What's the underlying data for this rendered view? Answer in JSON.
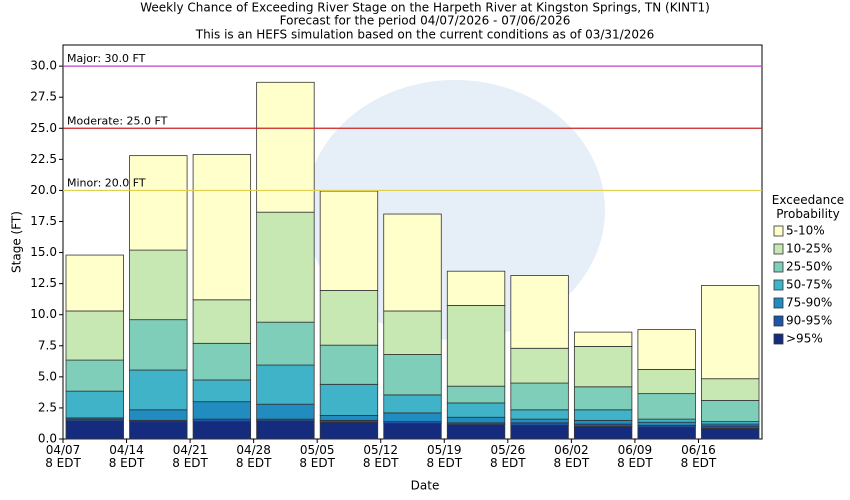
{
  "chart_data": {
    "type": "stacked_bar",
    "title": "Weekly Chance of Exceeding River Stage on the Harpeth River at Kingston Springs, TN (KINT1)",
    "subtitle": "Forecast for the period 04/07/2026 - 07/06/2026",
    "note": "This is an HEFS simulation based on the current conditions as of 03/31/2026",
    "x_label": "Date",
    "y_label": "Stage (FT)",
    "legend_title": "Exceedance Probability",
    "categories": [
      "04/07 8 EDT",
      "04/14 8 EDT",
      "04/21 8 EDT",
      "04/28 8 EDT",
      "05/05 8 EDT",
      "05/12 8 EDT",
      "05/19 8 EDT",
      "05/26 8 EDT",
      "06/02 8 EDT",
      "06/09 8 EDT",
      "06/16 8 EDT"
    ],
    "series": [
      {
        "name": ">95%",
        "color": "#142b7e",
        "values": [
          1.45,
          1.4,
          1.4,
          1.45,
          1.35,
          1.25,
          1.15,
          1.1,
          1.0,
          0.95,
          0.85
        ]
      },
      {
        "name": "90-95%",
        "color": "#1f55a6",
        "values": [
          0.15,
          0.1,
          0.2,
          0.15,
          0.15,
          0.15,
          0.15,
          0.2,
          0.2,
          0.15,
          0.2
        ]
      },
      {
        "name": "75-90%",
        "color": "#208cc0",
        "values": [
          0.1,
          0.85,
          1.4,
          1.2,
          0.4,
          0.7,
          0.45,
          0.3,
          0.3,
          0.25,
          0.15
        ]
      },
      {
        "name": "50-75%",
        "color": "#41b3c8",
        "values": [
          2.15,
          3.2,
          1.75,
          3.15,
          2.5,
          1.45,
          1.15,
          0.75,
          0.85,
          0.25,
          0.2
        ]
      },
      {
        "name": "25-50%",
        "color": "#7fceba",
        "values": [
          2.5,
          4.05,
          2.95,
          3.45,
          3.15,
          3.25,
          1.35,
          2.15,
          1.85,
          2.05,
          1.7
        ]
      },
      {
        "name": "10-25%",
        "color": "#c7e8b3",
        "values": [
          3.95,
          5.6,
          3.5,
          8.85,
          4.4,
          3.5,
          6.5,
          2.8,
          3.25,
          1.95,
          1.75
        ]
      },
      {
        "name": "5-10%",
        "color": "#ffffcc",
        "values": [
          4.5,
          7.6,
          11.7,
          10.45,
          8.0,
          7.8,
          2.75,
          5.85,
          1.15,
          3.2,
          7.5
        ]
      }
    ],
    "thresholds": [
      {
        "label": "Major: 30.0 FT",
        "value": 30,
        "color": "#c040c8"
      },
      {
        "label": "Moderate: 25.0 FT",
        "value": 25,
        "color": "#cc2222"
      },
      {
        "label": "Minor: 20.0 FT",
        "value": 20,
        "color": "#e0d050"
      }
    ],
    "ylim": [
      0,
      31.7
    ],
    "yticks": [
      {
        "value": 0,
        "label": "0.0"
      },
      {
        "value": 2.5,
        "label": "2.5"
      },
      {
        "value": 5,
        "label": "5.0"
      },
      {
        "value": 7.5,
        "label": "7.5"
      },
      {
        "value": 10,
        "label": "10.0"
      },
      {
        "value": 12.5,
        "label": "12.5"
      },
      {
        "value": 15,
        "label": "15.0"
      },
      {
        "value": 17.5,
        "label": "17.5"
      },
      {
        "value": 20,
        "label": "20.0"
      },
      {
        "value": 22.5,
        "label": "22.5"
      },
      {
        "value": 25,
        "label": "25.0"
      },
      {
        "value": 27.5,
        "label": "27.5"
      },
      {
        "value": 30,
        "label": "30.0"
      }
    ]
  }
}
